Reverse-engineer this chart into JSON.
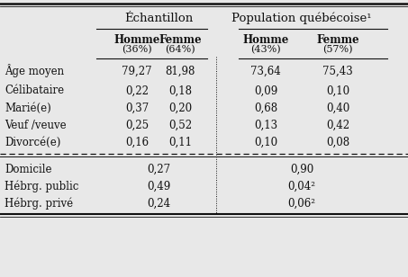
{
  "title_left": "Échantillon",
  "title_right": "Population québécoise¹",
  "col_headers_line1": [
    "Homme",
    "Femme",
    "Homme",
    "Femme"
  ],
  "col_headers_line2": [
    "(36%)",
    "(64%)",
    "(43%)",
    "(57%)"
  ],
  "row_labels_top": [
    "Âge moyen",
    "Célibataire",
    "Marié(e)",
    "Veuf /veuve",
    "Divorcé(e)"
  ],
  "data_top": [
    [
      "79,27",
      "81,98",
      "73,64",
      "75,43"
    ],
    [
      "0,22",
      "0,18",
      "0,09",
      "0,10"
    ],
    [
      "0,37",
      "0,20",
      "0,68",
      "0,40"
    ],
    [
      "0,25",
      "0,52",
      "0,13",
      "0,42"
    ],
    [
      "0,16",
      "0,11",
      "0,10",
      "0,08"
    ]
  ],
  "row_labels_bottom": [
    "Domicile",
    "Hébrg. public",
    "Hébrg. privé"
  ],
  "data_bottom_left": [
    "0,27",
    "0,49",
    "0,24"
  ],
  "data_bottom_right": [
    "0,90",
    "0,04²",
    "0,06²"
  ],
  "bg_color": "#e8e8e8",
  "text_color": "#111111",
  "font_size": 8.5
}
